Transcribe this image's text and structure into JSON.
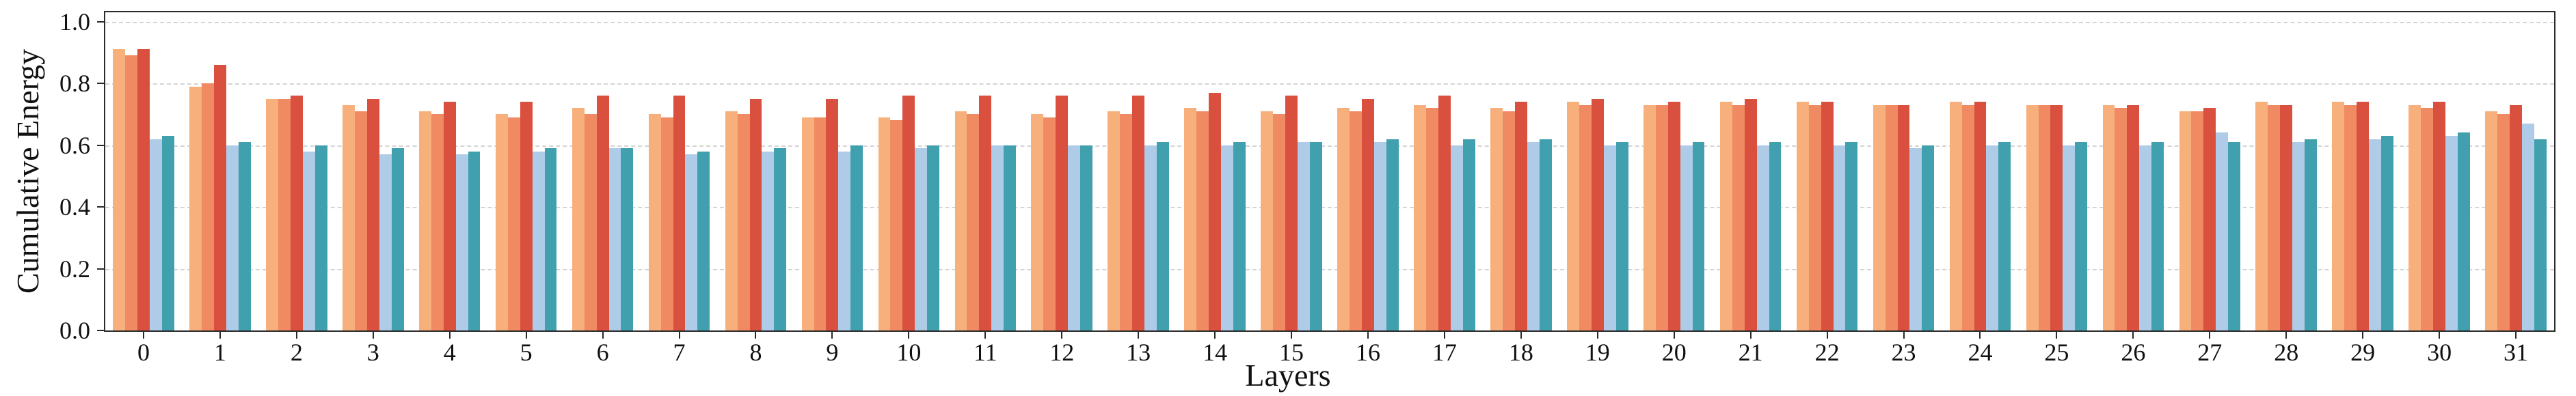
{
  "figure": {
    "background": "#ffffff",
    "spine_color": "#2b2b2b",
    "grid_color": "#d4d4d4"
  },
  "chart_data": {
    "type": "bar",
    "title": "",
    "xlabel": "Layers",
    "ylabel": "Cumulative Energy",
    "ylim": [
      0,
      1.0
    ],
    "ymax_draw": 1.03,
    "yticks": [
      0.0,
      0.2,
      0.4,
      0.6,
      0.8,
      1.0
    ],
    "ytick_labels": [
      "0.0",
      "0.2",
      "0.4",
      "0.6",
      "0.8",
      "1.0"
    ],
    "grid": "horizontal-dashed",
    "legend": "none",
    "categories": [
      "0",
      "1",
      "2",
      "3",
      "4",
      "5",
      "6",
      "7",
      "8",
      "9",
      "10",
      "11",
      "12",
      "13",
      "14",
      "15",
      "16",
      "17",
      "18",
      "19",
      "20",
      "21",
      "22",
      "23",
      "24",
      "25",
      "26",
      "27",
      "28",
      "29",
      "30",
      "31"
    ],
    "series": [
      {
        "name": "orange-light",
        "color": "#F7B07C",
        "values": [
          0.91,
          0.79,
          0.75,
          0.73,
          0.71,
          0.7,
          0.72,
          0.7,
          0.71,
          0.69,
          0.69,
          0.71,
          0.7,
          0.71,
          0.72,
          0.71,
          0.72,
          0.73,
          0.72,
          0.74,
          0.73,
          0.74,
          0.74,
          0.73,
          0.74,
          0.73,
          0.73,
          0.71,
          0.74,
          0.74,
          0.73,
          0.71
        ]
      },
      {
        "name": "orange",
        "color": "#F08A62",
        "values": [
          0.89,
          0.8,
          0.75,
          0.71,
          0.7,
          0.69,
          0.7,
          0.69,
          0.7,
          0.69,
          0.68,
          0.7,
          0.69,
          0.7,
          0.71,
          0.7,
          0.71,
          0.72,
          0.71,
          0.73,
          0.73,
          0.73,
          0.73,
          0.73,
          0.73,
          0.73,
          0.72,
          0.71,
          0.73,
          0.73,
          0.72,
          0.7
        ]
      },
      {
        "name": "red",
        "color": "#D9503F",
        "values": [
          0.91,
          0.86,
          0.76,
          0.75,
          0.74,
          0.74,
          0.76,
          0.76,
          0.75,
          0.75,
          0.76,
          0.76,
          0.76,
          0.76,
          0.77,
          0.76,
          0.75,
          0.76,
          0.74,
          0.75,
          0.74,
          0.75,
          0.74,
          0.73,
          0.74,
          0.73,
          0.73,
          0.72,
          0.73,
          0.74,
          0.74,
          0.73
        ]
      },
      {
        "name": "blue-light",
        "color": "#AECBE8",
        "values": [
          0.62,
          0.6,
          0.58,
          0.57,
          0.57,
          0.58,
          0.59,
          0.57,
          0.58,
          0.58,
          0.59,
          0.6,
          0.6,
          0.6,
          0.6,
          0.61,
          0.61,
          0.6,
          0.61,
          0.6,
          0.6,
          0.6,
          0.6,
          0.59,
          0.6,
          0.6,
          0.6,
          0.64,
          0.61,
          0.62,
          0.63,
          0.67
        ]
      },
      {
        "name": "teal",
        "color": "#41A0AE",
        "values": [
          0.63,
          0.61,
          0.6,
          0.59,
          0.58,
          0.59,
          0.59,
          0.58,
          0.59,
          0.6,
          0.6,
          0.6,
          0.6,
          0.61,
          0.61,
          0.61,
          0.62,
          0.62,
          0.62,
          0.61,
          0.61,
          0.61,
          0.61,
          0.6,
          0.61,
          0.61,
          0.61,
          0.61,
          0.62,
          0.63,
          0.64,
          0.62
        ]
      }
    ]
  }
}
